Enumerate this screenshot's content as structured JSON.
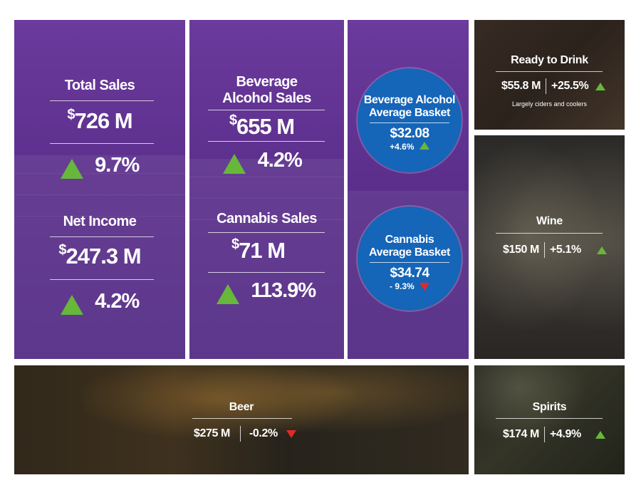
{
  "total_sales": {
    "label": "Total Sales",
    "currency": "$",
    "value": "726 M",
    "change": "9.7%"
  },
  "net_income": {
    "label": "Net Income",
    "currency": "$",
    "value": "247.3 M",
    "change": "4.2%"
  },
  "beverage_alcohol_sales": {
    "label_line1": "Beverage",
    "label_line2": "Alcohol Sales",
    "currency": "$",
    "value": "655 M",
    "change": "4.2%"
  },
  "cannabis_sales": {
    "label": "Cannabis Sales",
    "currency": "$",
    "value": "71 M",
    "change": "113.9%"
  },
  "beverage_basket": {
    "title_line1": "Beverage Alcohol",
    "title_line2": "Average Basket",
    "value": "$32.08",
    "change": "+4.6%"
  },
  "cannabis_basket": {
    "title_line1": "Cannabis",
    "title_line2": "Average Basket",
    "value": "$34.74",
    "change": "- 9.3%"
  },
  "ready_to_drink": {
    "title": "Ready to Drink",
    "value": "$55.8 M",
    "change": "+25.5%",
    "note": "Largely ciders and coolers"
  },
  "wine": {
    "title": "Wine",
    "value": "$150 M",
    "change": "+5.1%"
  },
  "beer": {
    "title": "Beer",
    "value": "$275 M",
    "change": "-0.2%"
  },
  "spirits": {
    "title": "Spirits",
    "value": "$174 M",
    "change": "+4.9%"
  },
  "colors": {
    "purple": "#5a2d8a",
    "circle_blue": "#1565b8",
    "up_green": "#67b83a",
    "down_red": "#e12a26"
  }
}
